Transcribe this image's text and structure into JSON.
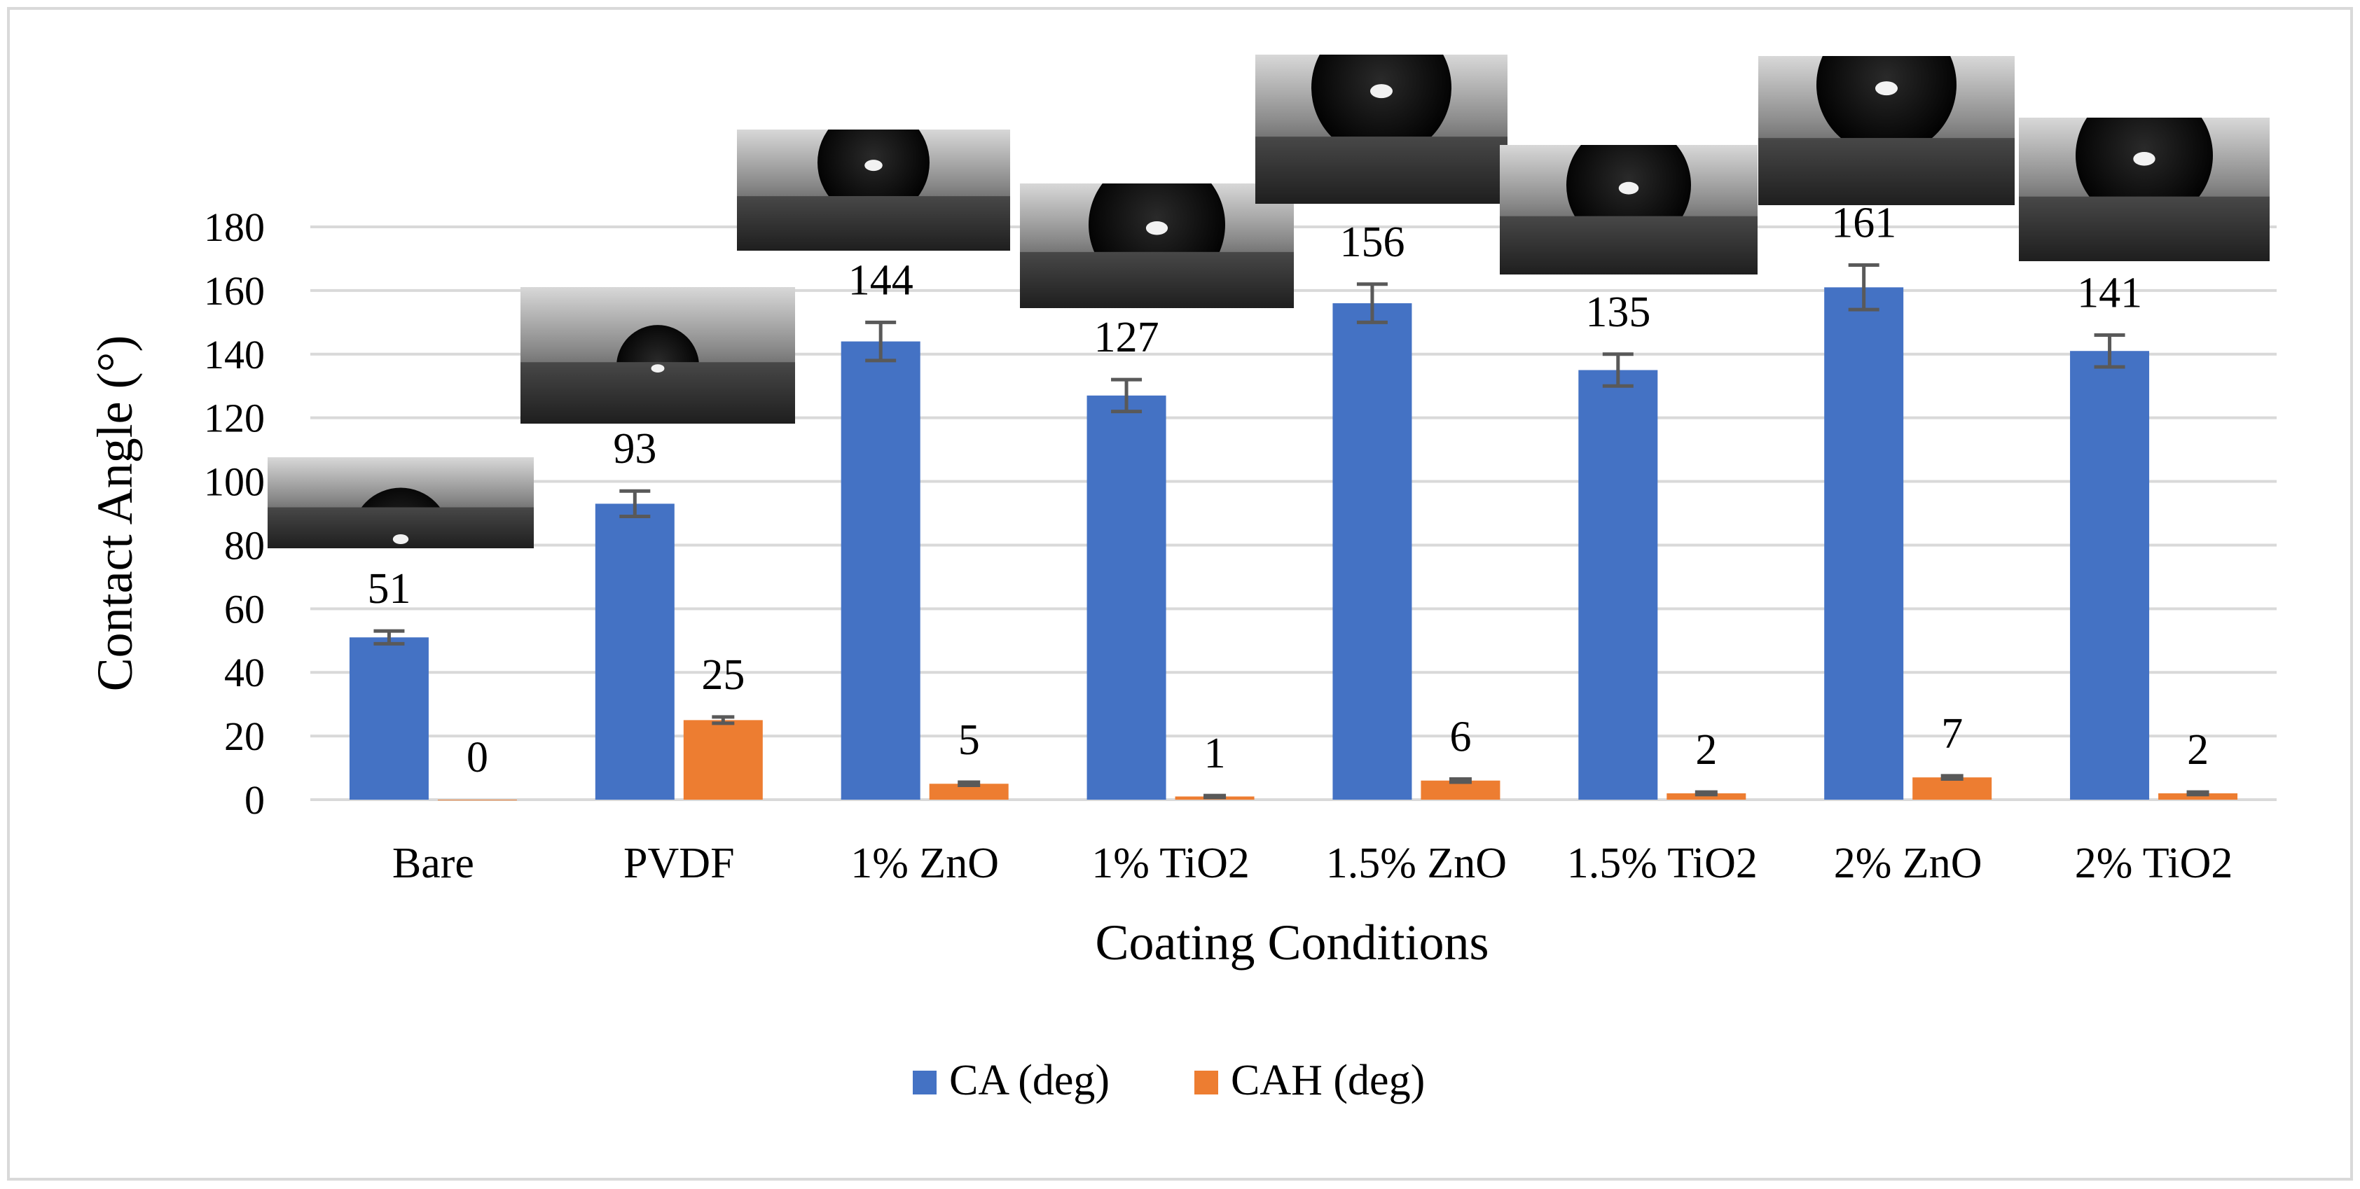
{
  "chart_data": {
    "type": "bar",
    "title": "",
    "xlabel": "Coating Conditions",
    "ylabel": "Contact Angle (°)",
    "ylim": [
      0,
      180
    ],
    "yticks": [
      0,
      20,
      40,
      60,
      80,
      100,
      120,
      140,
      160,
      180
    ],
    "grid": true,
    "legend_position": "bottom",
    "categories": [
      "Bare",
      "PVDF",
      "1% ZnO",
      "1% TiO2",
      "1.5% ZnO",
      "1.5% TiO2",
      "2% ZnO",
      "2% TiO2"
    ],
    "series": [
      {
        "name": "CA (deg)",
        "color": "#4472C4",
        "values": [
          51,
          93,
          144,
          127,
          156,
          135,
          161,
          141
        ],
        "errors": [
          2,
          4,
          6,
          5,
          6,
          5,
          7,
          5
        ],
        "labels": [
          "51",
          "93",
          "144",
          "127",
          "156",
          "135",
          "161",
          "141"
        ]
      },
      {
        "name": "CAH (deg)",
        "color": "#ED7D31",
        "values": [
          0,
          25,
          5,
          1,
          6,
          2,
          7,
          2
        ],
        "errors": [
          0,
          1,
          0.5,
          0.3,
          0.5,
          0.4,
          0.5,
          0.4
        ],
        "labels": [
          "0",
          "25",
          "5",
          "1",
          "6",
          "2",
          "7",
          "2"
        ]
      }
    ],
    "droplet_images": [
      "Bare",
      "PVDF",
      "1% ZnO",
      "1% TiO2",
      "1.5% ZnO",
      "1.5% TiO2",
      "2% ZnO",
      "2% TiO2"
    ]
  }
}
